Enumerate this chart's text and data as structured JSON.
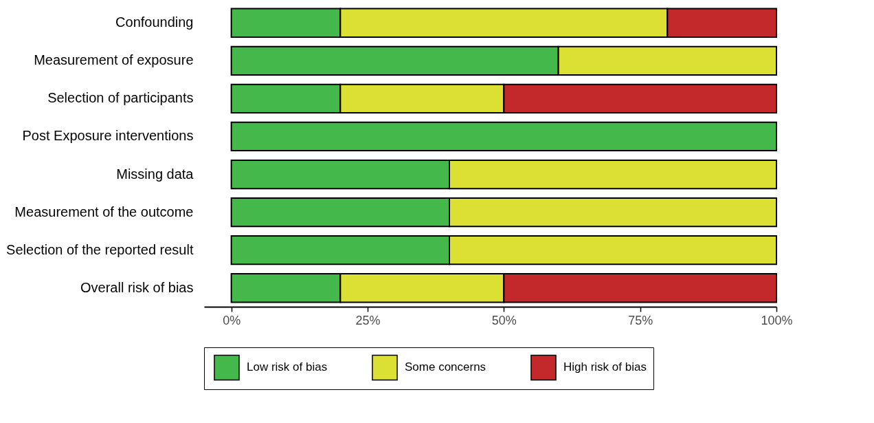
{
  "chart_data": {
    "type": "bar",
    "orientation": "horizontal",
    "stacked": true,
    "categories": [
      "Confounding",
      "Measurement of exposure",
      "Selection of participants",
      "Post Exposure interventions",
      "Missing data",
      "Measurement of the outcome",
      "Selection of the reported result",
      "Overall risk of bias"
    ],
    "series": [
      {
        "name": "Low risk of bias",
        "color": "#44b84b",
        "values": [
          20,
          60,
          20,
          100,
          40,
          40,
          40,
          20
        ]
      },
      {
        "name": "Some concerns",
        "color": "#dbe032",
        "values": [
          60,
          40,
          30,
          null,
          60,
          60,
          60,
          30
        ]
      },
      {
        "name": "High risk of bias",
        "color": "#c3282a",
        "values": [
          20,
          null,
          50,
          null,
          null,
          null,
          null,
          50
        ]
      }
    ],
    "xlim": [
      -5,
      100
    ],
    "xticks": [
      {
        "value": 0,
        "label": "0%"
      },
      {
        "value": 25,
        "label": "25%"
      },
      {
        "value": 50,
        "label": "50%"
      },
      {
        "value": 75,
        "label": "75%"
      },
      {
        "value": 100,
        "label": "100%"
      }
    ],
    "grid": false,
    "legend": "bottom"
  }
}
